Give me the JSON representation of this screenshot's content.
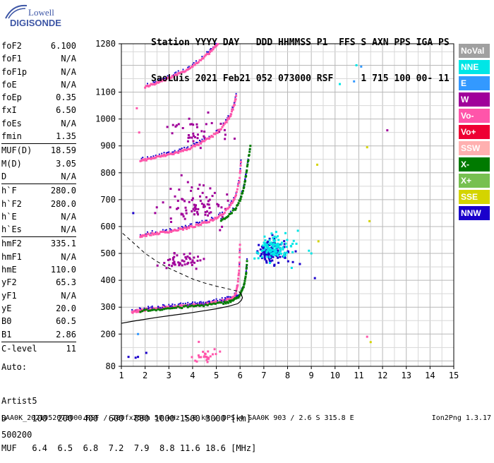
{
  "logo": {
    "line1": "Lowell",
    "line2": "DIGISONDE"
  },
  "header": {
    "line1": "Station YYYY DAY   DDD HHMMSS P1  FFS S AXN PPS IGA PS",
    "line2": "SaoLuis 2021 Feb21 052 073000 RSF     1 715 100 00- 11"
  },
  "params": [
    {
      "k": "foF2",
      "v": "6.100"
    },
    {
      "k": "foF1",
      "v": "N/A"
    },
    {
      "k": "foF1p",
      "v": "N/A"
    },
    {
      "k": "foE",
      "v": "N/A"
    },
    {
      "k": "foEp",
      "v": "0.35"
    },
    {
      "k": "fxI",
      "v": "6.50"
    },
    {
      "k": "foEs",
      "v": "N/A"
    },
    {
      "k": "fmin",
      "v": "1.35"
    },
    {
      "sep": true
    },
    {
      "k": "MUF(D)",
      "v": "18.59"
    },
    {
      "k": "M(D)",
      "v": "3.05"
    },
    {
      "k": "D",
      "v": "N/A"
    },
    {
      "sep": true
    },
    {
      "k": "h`F",
      "v": "280.0"
    },
    {
      "k": "h`F2",
      "v": "280.0"
    },
    {
      "k": "h`E",
      "v": "N/A"
    },
    {
      "k": "h`Es",
      "v": "N/A"
    },
    {
      "sep": true
    },
    {
      "k": "hmF2",
      "v": "335.1"
    },
    {
      "k": "hmF1",
      "v": "N/A"
    },
    {
      "k": "hmE",
      "v": "110.0"
    },
    {
      "k": "yF2",
      "v": "65.3"
    },
    {
      "k": "yF1",
      "v": "N/A"
    },
    {
      "k": "yE",
      "v": "20.0"
    },
    {
      "k": "B0",
      "v": "60.5"
    },
    {
      "k": "B1",
      "v": "2.86"
    },
    {
      "sep": true
    },
    {
      "k": "C-level",
      "v": "11"
    }
  ],
  "auto": {
    "l1": "Auto:",
    "l2": "Artist5",
    "l3": "500200"
  },
  "bottom_table": {
    "d_row": "D     100  200  400  600  800 1000 1500 3000 [km]",
    "muf_row": "MUF   6.4  6.5  6.8  7.2  7.9  8.8 11.6 18.6 [MHz]"
  },
  "footer": {
    "left": "SAA0K_2021052073000.RSF / 280fx256h 50 kHz 5.0 km / DPS-4 SAA0K 903 / 2.6 S 315.8 E",
    "right": "Ion2Png 1.3.17"
  },
  "legend": [
    {
      "label": "NoVal",
      "color": "#a0a0a0"
    },
    {
      "label": "NNE",
      "color": "#00e6e6"
    },
    {
      "label": "E",
      "color": "#3399ff"
    },
    {
      "label": "W",
      "color": "#a0009a"
    },
    {
      "label": "Vo-",
      "color": "#ff55aa"
    },
    {
      "label": "Vo+",
      "color": "#ee0033"
    },
    {
      "label": "SSW",
      "color": "#ffb0b0"
    },
    {
      "label": "X-",
      "color": "#007a00"
    },
    {
      "label": "X+",
      "color": "#77c050"
    },
    {
      "label": "SSE",
      "color": "#d4d400"
    },
    {
      "label": "NNW",
      "color": "#1a00cc"
    }
  ],
  "chart_data": {
    "type": "scatter",
    "title": "",
    "xlabel": "",
    "ylabel": "",
    "xlim": [
      1,
      15
    ],
    "ylim": [
      80,
      1280
    ],
    "x_ticks": [
      1,
      2,
      3,
      4,
      5,
      6,
      7,
      8,
      9,
      10,
      11,
      12,
      13,
      14,
      15
    ],
    "y_ticks": [
      80,
      200,
      300,
      400,
      500,
      600,
      700,
      800,
      900,
      1000,
      1100,
      1280
    ],
    "grid": true,
    "traces": [
      {
        "name": "",
        "color": "#ff55aa",
        "x": [
          1.45,
          1.6,
          1.8,
          2.0,
          2.2,
          2.5,
          2.8,
          3.1,
          3.4,
          3.7,
          4.0,
          4.3,
          4.6,
          4.9,
          5.2,
          5.45,
          5.65,
          5.8,
          5.9,
          5.97,
          6.0
        ],
        "y": [
          282,
          285,
          288,
          290,
          292,
          295,
          298,
          300,
          303,
          305,
          308,
          311,
          314,
          318,
          322,
          327,
          333,
          345,
          380,
          450,
          550
        ]
      },
      {
        "name": "",
        "color": "#007a00",
        "x": [
          1.8,
          2.3,
          2.8,
          3.3,
          3.8,
          4.3,
          4.8,
          5.3,
          5.6,
          5.8,
          6.0,
          6.15,
          6.25,
          6.3
        ],
        "y": [
          286,
          290,
          294,
          298,
          302,
          306,
          310,
          316,
          322,
          330,
          345,
          375,
          420,
          480
        ]
      },
      {
        "name": "",
        "color": "#ff55aa",
        "x": [
          1.8,
          2.0,
          2.3,
          2.6,
          2.9,
          3.2,
          3.5,
          3.8,
          4.1,
          4.4,
          4.7,
          5.0,
          5.3,
          5.6,
          5.8,
          5.97,
          6.05
        ],
        "y": [
          565,
          568,
          572,
          576,
          580,
          585,
          590,
          595,
          602,
          610,
          620,
          632,
          650,
          680,
          710,
          770,
          850
        ]
      },
      {
        "name": "",
        "color": "#007a00",
        "x": [
          5.2,
          5.5,
          5.8,
          6.0,
          6.15,
          6.25,
          6.35,
          6.45
        ],
        "y": [
          620,
          640,
          665,
          700,
          740,
          790,
          850,
          910
        ]
      },
      {
        "name": "",
        "color": "#ff55aa",
        "x": [
          1.8,
          2.1,
          2.4,
          2.7,
          3.0,
          3.3,
          3.6,
          3.9,
          4.2,
          4.5,
          4.8,
          5.1,
          5.4,
          5.6,
          5.75,
          5.85
        ],
        "y": [
          845,
          850,
          856,
          862,
          868,
          874,
          882,
          892,
          904,
          918,
          934,
          955,
          985,
          1015,
          1050,
          1090
        ]
      },
      {
        "name": "",
        "color": "#ff55aa",
        "x": [
          2.0,
          2.3,
          2.6,
          2.9,
          3.2,
          3.5,
          3.8,
          4.1,
          4.4,
          4.7,
          4.9,
          5.1
        ],
        "y": [
          1120,
          1128,
          1138,
          1148,
          1160,
          1172,
          1186,
          1202,
          1222,
          1246,
          1264,
          1280
        ]
      }
    ],
    "clusters": [
      {
        "name": "",
        "color": "#1a00cc",
        "x": 7.35,
        "y": 505,
        "sx": 0.5,
        "sy": 35,
        "n": 140
      },
      {
        "name": "",
        "color": "#00e6e6",
        "x": 7.4,
        "y": 520,
        "sx": 0.7,
        "sy": 40,
        "n": 110
      },
      {
        "name": "",
        "color": "#a0009a",
        "x": 3.6,
        "y": 470,
        "sx": 0.8,
        "sy": 25,
        "n": 50
      },
      {
        "name": "",
        "color": "#a0009a",
        "x": 4.2,
        "y": 680,
        "sx": 1.2,
        "sy": 60,
        "n": 80
      },
      {
        "name": "",
        "color": "#a0009a",
        "x": 4.3,
        "y": 950,
        "sx": 1.0,
        "sy": 40,
        "n": 40
      },
      {
        "name": "",
        "color": "#ff55aa",
        "x": 4.6,
        "y": 120,
        "sx": 0.3,
        "sy": 30,
        "n": 25
      }
    ],
    "profile": {
      "color": "#000000",
      "x": [
        1.0,
        1.5,
        2.0,
        2.5,
        3.0,
        3.5,
        4.0,
        4.5,
        5.0,
        5.5,
        5.9,
        6.05,
        6.1,
        6.05,
        5.95
      ],
      "y": [
        240,
        248,
        255,
        262,
        268,
        274,
        280,
        287,
        294,
        303,
        313,
        325,
        335,
        348,
        358
      ]
    },
    "profile_extension": {
      "color": "#000000",
      "style": "dashed",
      "x": [
        1.05,
        1.5,
        2.0,
        2.5,
        3.0,
        3.5,
        4.0,
        4.5,
        5.0,
        5.5,
        5.95
      ],
      "y": [
        575,
        540,
        500,
        470,
        445,
        425,
        405,
        390,
        378,
        368,
        358
      ]
    },
    "scattered_points": [
      {
        "color": "#3399ff",
        "x": 10.8,
        "y": 1140
      },
      {
        "color": "#00e6e6",
        "x": 10.9,
        "y": 1200
      },
      {
        "color": "#3399ff",
        "x": 11.1,
        "y": 1195
      },
      {
        "color": "#00e6e6",
        "x": 10.2,
        "y": 1130
      },
      {
        "color": "#a0009a",
        "x": 12.2,
        "y": 958
      },
      {
        "color": "#d4d400",
        "x": 11.35,
        "y": 895
      },
      {
        "color": "#d4d400",
        "x": 9.25,
        "y": 830
      },
      {
        "color": "#d4d400",
        "x": 11.45,
        "y": 620
      },
      {
        "color": "#1a00cc",
        "x": 9.15,
        "y": 408
      },
      {
        "color": "#d4d400",
        "x": 11.5,
        "y": 170
      },
      {
        "color": "#ff55aa",
        "x": 11.35,
        "y": 190
      },
      {
        "color": "#d4d400",
        "x": 9.3,
        "y": 545
      },
      {
        "color": "#00e6e6",
        "x": 8.9,
        "y": 510
      },
      {
        "color": "#00e6e6",
        "x": 9.0,
        "y": 500
      },
      {
        "color": "#1a00cc",
        "x": 1.5,
        "y": 650
      },
      {
        "color": "#1a00cc",
        "x": 1.3,
        "y": 115
      },
      {
        "color": "#1a00cc",
        "x": 1.6,
        "y": 112
      },
      {
        "color": "#3399ff",
        "x": 1.7,
        "y": 200
      },
      {
        "color": "#1a00cc",
        "x": 2.05,
        "y": 130
      },
      {
        "color": "#1a00cc",
        "x": 1.7,
        "y": 115
      },
      {
        "color": "#ff55aa",
        "x": 1.65,
        "y": 1040
      },
      {
        "color": "#ff55aa",
        "x": 1.75,
        "y": 950
      }
    ]
  }
}
